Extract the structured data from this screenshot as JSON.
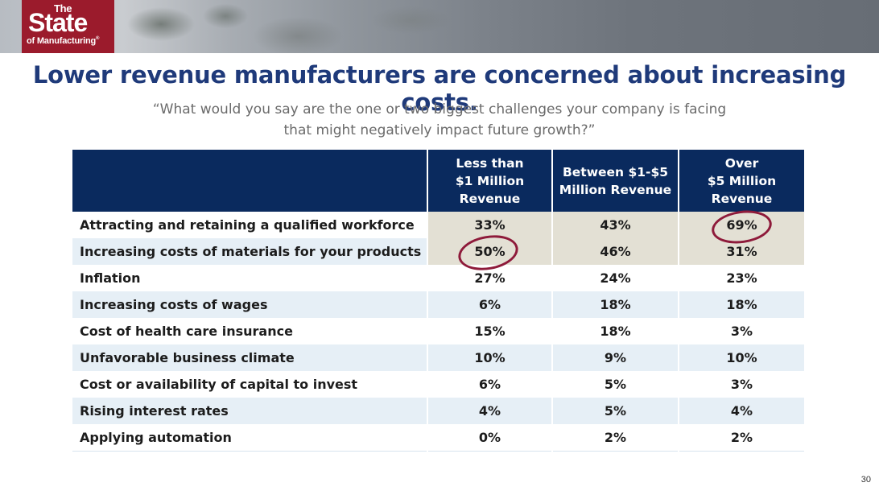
{
  "logo": {
    "the": "The",
    "state": "State",
    "sub": "of Manufacturing",
    "tm": "®"
  },
  "title": "Lower revenue manufacturers are concerned about increasing costs.",
  "quote": {
    "line1": "“What would you say are the one or two biggest challenges your company is facing",
    "line2": "that might negatively impact future growth?”"
  },
  "table": {
    "headers": [
      "",
      [
        "Less than",
        "$1 Million",
        "Revenue"
      ],
      [
        "Between $1-$5",
        "Million Revenue"
      ],
      [
        "Over",
        "$5 Million",
        "Revenue"
      ]
    ],
    "rows": [
      {
        "label": "Attracting and retaining a qualified workforce",
        "values": [
          "33%",
          "43%",
          "69%"
        ]
      },
      {
        "label": "Increasing costs of materials for your products",
        "values": [
          "50%",
          "46%",
          "31%"
        ]
      },
      {
        "label": "Inflation",
        "values": [
          "27%",
          "24%",
          "23%"
        ]
      },
      {
        "label": "Increasing costs of wages",
        "values": [
          "6%",
          "18%",
          "18%"
        ]
      },
      {
        "label": "Cost of health care insurance",
        "values": [
          "15%",
          "18%",
          "3%"
        ]
      },
      {
        "label": "Unfavorable business climate",
        "values": [
          "10%",
          "9%",
          "10%"
        ]
      },
      {
        "label": "Cost or availability of capital to invest",
        "values": [
          "6%",
          "5%",
          "3%"
        ]
      },
      {
        "label": "Rising interest rates",
        "values": [
          "4%",
          "5%",
          "4%"
        ]
      },
      {
        "label": "Applying automation",
        "values": [
          "0%",
          "2%",
          "2%"
        ]
      }
    ]
  },
  "colors": {
    "header_bg": "#0a2a5e",
    "title": "#1f3a7a",
    "highlight_row": "#e3e0d4",
    "stripe": "#e6eff6",
    "circle": "#8e1a3a",
    "logo_bg": "#9b1b2c"
  },
  "page_number": "30"
}
